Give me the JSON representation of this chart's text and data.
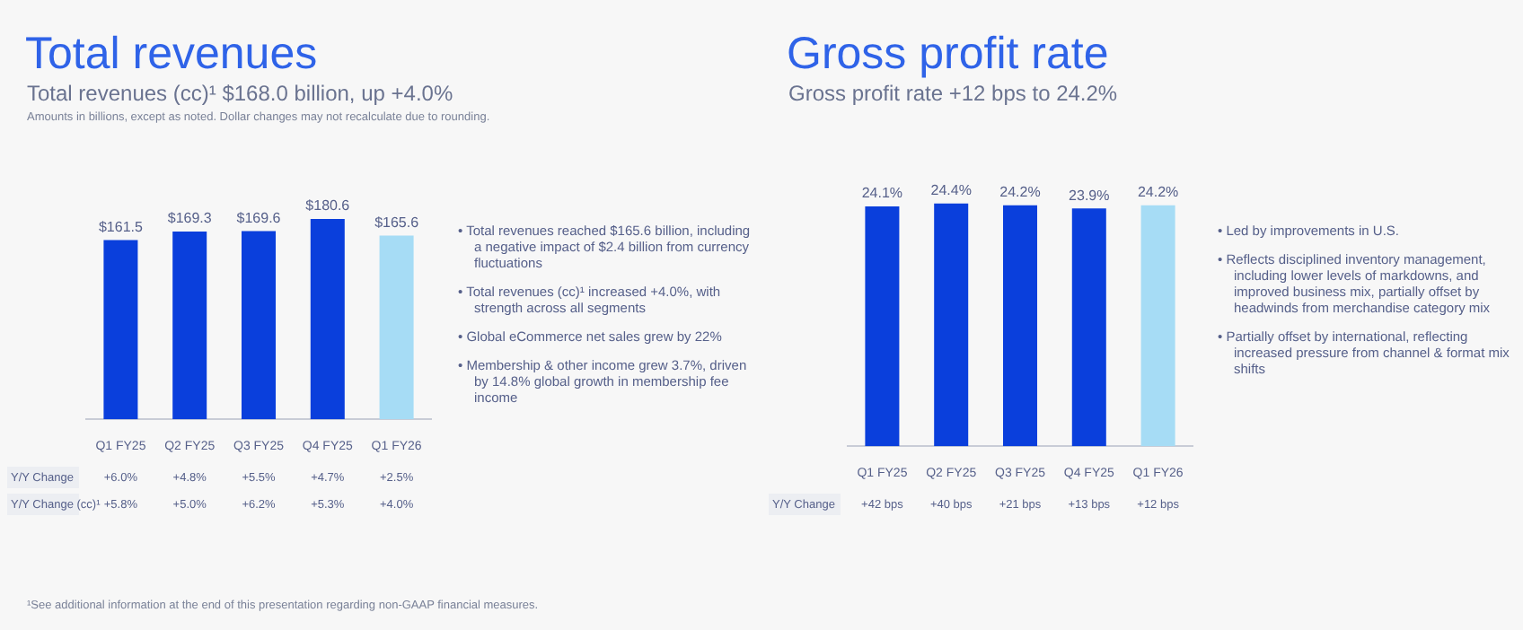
{
  "chart_data": [
    {
      "type": "bar",
      "title": "Total revenues",
      "subtitle": "Total revenues (cc)¹ $168.0 billion, up +4.0%",
      "categories": [
        "Q1 FY25",
        "Q2 FY25",
        "Q3 FY25",
        "Q4 FY25",
        "Q1 FY26"
      ],
      "values": [
        161.5,
        169.3,
        169.6,
        180.6,
        165.6
      ],
      "colors": [
        "#0a3fdc",
        "#0a3fdc",
        "#0a3fdc",
        "#0a3fdc",
        "#a6dcf5"
      ],
      "value_labels": [
        "$161.5",
        "$169.3",
        "$169.6",
        "$180.6",
        "$165.6"
      ],
      "tick_labels": "x",
      "annotations": [
        "Y/Y Change",
        "+6.0%",
        "+4.8%",
        "+5.5%",
        "+4.7%",
        "+2.5%",
        "Y/Y Change (cc)¹",
        "+5.8%",
        "+5.0%",
        "+6.2%",
        "+5.3%",
        "+4.0%",
        "Amounts in billions, except as noted. Dollar changes may not recalculate due to rounding.",
        "¹See additional information at the end of this presentation regarding non-GAAP financial measures."
      ]
    },
    {
      "type": "other",
      "annotations": [
        "• Total revenues reached $165.6 billion, including a negative impact of $2.4 billion from currency fluctuations",
        "• Total revenues (cc)¹ increased +4.0%, with strength across all segments",
        "• Global eCommerce net sales grew by 22%",
        "• Membership & other income grew 3.7%, driven by 14.8% global growth in membership fee income"
      ]
    },
    {
      "type": "bar",
      "title": "Gross profit rate",
      "subtitle": "Gross profit rate +12 bps to 24.2%",
      "categories": [
        "Q1 FY25",
        "Q2 FY25",
        "Q3 FY25",
        "Q4 FY25",
        "Q1 FY26"
      ],
      "values": [
        24.1,
        24.4,
        24.2,
        23.9,
        24.2
      ],
      "colors": [
        "#0a3fdc",
        "#0a3fdc",
        "#0a3fdc",
        "#0a3fdc",
        "#a6dcf5"
      ],
      "value_labels": [
        "24.1%",
        "24.4%",
        "24.2%",
        "23.9%",
        "24.2%"
      ],
      "tick_labels": "x",
      "annotations": [
        "Y/Y Change",
        "+42 bps",
        "+40 bps",
        "+21 bps",
        "+13 bps",
        "+12 bps"
      ]
    },
    {
      "type": "other",
      "annotations": [
        "• Led by improvements in U.S.",
        "• Reflects disciplined inventory management, including lower levels of markdowns, and improved business mix, partially offset by headwinds from merchandise category mix",
        "• Partially offset by international, reflecting increased pressure from channel & format mix shifts"
      ]
    }
  ]
}
